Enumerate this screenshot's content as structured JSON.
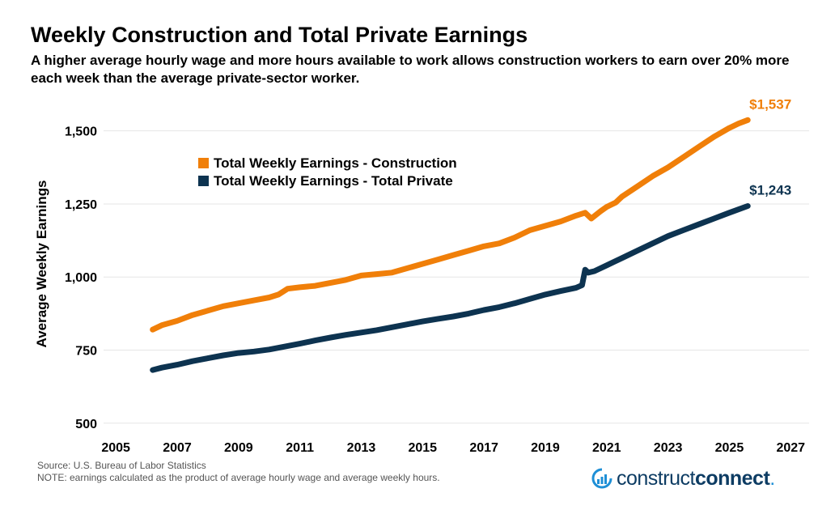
{
  "header": {
    "title": "Weekly Construction and Total Private Earnings",
    "subtitle": "A higher average hourly wage and more hours available to work allows construction workers to earn over 20% more each week than the average private-sector worker."
  },
  "footer": {
    "source": "Source: U.S. Bureau of Labor Statistics",
    "note": "NOTE: earnings calculated as the product of average hourly wage and average weekly hours."
  },
  "logo": {
    "text_light": "construct",
    "text_bold": "connect",
    "text_dot": "."
  },
  "chart_data": {
    "type": "line",
    "title": "Weekly Construction and Total Private Earnings",
    "ylabel": "Average Weekly Earnings",
    "xlabel": "",
    "xlim": [
      2004.6,
      2027.6
    ],
    "ylim": [
      480,
      1560
    ],
    "x_ticks": [
      2005,
      2007,
      2009,
      2011,
      2013,
      2015,
      2017,
      2019,
      2021,
      2023,
      2025,
      2027
    ],
    "y_ticks": [
      500,
      750,
      1000,
      1250,
      1500
    ],
    "y_tick_labels": [
      "500",
      "750",
      "1,000",
      "1,250",
      "1,500"
    ],
    "grid": "horizontal",
    "legend_position": "upper-left",
    "series": [
      {
        "name": "Total Weekly Earnings - Construction",
        "color": "#f07f09",
        "end_label": "$1,537",
        "x": [
          2006.2,
          2006.5,
          2007.0,
          2007.5,
          2008.0,
          2008.5,
          2009.0,
          2009.5,
          2010.0,
          2010.3,
          2010.6,
          2011.0,
          2011.5,
          2012.0,
          2012.5,
          2013.0,
          2013.5,
          2014.0,
          2014.5,
          2015.0,
          2015.5,
          2016.0,
          2016.5,
          2017.0,
          2017.5,
          2018.0,
          2018.5,
          2019.0,
          2019.5,
          2020.0,
          2020.3,
          2020.5,
          2020.8,
          2021.0,
          2021.3,
          2021.5,
          2022.0,
          2022.5,
          2023.0,
          2023.5,
          2024.0,
          2024.5,
          2025.0,
          2025.3,
          2025.6
        ],
        "y": [
          820,
          835,
          850,
          870,
          885,
          900,
          910,
          920,
          930,
          940,
          960,
          965,
          970,
          980,
          990,
          1005,
          1010,
          1015,
          1030,
          1045,
          1060,
          1075,
          1090,
          1105,
          1115,
          1135,
          1160,
          1175,
          1190,
          1210,
          1220,
          1200,
          1225,
          1240,
          1255,
          1275,
          1310,
          1345,
          1375,
          1410,
          1445,
          1480,
          1510,
          1525,
          1537
        ]
      },
      {
        "name": "Total Weekly Earnings - Total Private",
        "color": "#0d3350",
        "end_label": "$1,243",
        "x": [
          2006.2,
          2006.5,
          2007.0,
          2007.5,
          2008.0,
          2008.5,
          2009.0,
          2009.5,
          2010.0,
          2010.5,
          2011.0,
          2011.5,
          2012.0,
          2012.5,
          2013.0,
          2013.5,
          2014.0,
          2014.5,
          2015.0,
          2015.5,
          2016.0,
          2016.5,
          2017.0,
          2017.5,
          2018.0,
          2018.5,
          2019.0,
          2019.5,
          2020.0,
          2020.2,
          2020.3,
          2020.4,
          2020.6,
          2021.0,
          2021.5,
          2022.0,
          2022.5,
          2023.0,
          2023.5,
          2024.0,
          2024.5,
          2025.0,
          2025.6
        ],
        "y": [
          682,
          690,
          700,
          712,
          722,
          732,
          740,
          745,
          752,
          762,
          772,
          783,
          793,
          802,
          810,
          818,
          828,
          838,
          848,
          857,
          865,
          875,
          887,
          897,
          910,
          925,
          940,
          952,
          963,
          972,
          1025,
          1015,
          1020,
          1040,
          1065,
          1090,
          1115,
          1140,
          1160,
          1180,
          1200,
          1220,
          1243
        ]
      }
    ]
  }
}
